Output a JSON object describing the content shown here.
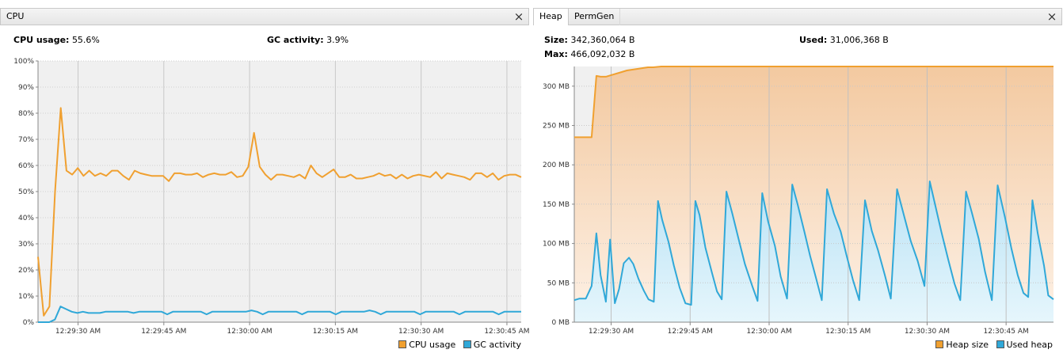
{
  "cpu": {
    "tab_label": "CPU",
    "usage_label": "CPU usage:",
    "usage_value": "55.6%",
    "gc_label": "GC activity:",
    "gc_value": "3.9%",
    "legend": [
      {
        "label": "CPU usage",
        "color": "#f0a030"
      },
      {
        "label": "GC activity",
        "color": "#30a8d8"
      }
    ]
  },
  "heap": {
    "tabs": [
      {
        "label": "Heap"
      },
      {
        "label": "PermGen"
      }
    ],
    "size_label": "Size:",
    "size_value": "342,360,064 B",
    "used_label": "Used:",
    "used_value": "31,006,368 B",
    "max_label": "Max:",
    "max_value": "466,092,032 B",
    "legend": [
      {
        "label": "Heap size",
        "color": "#f0a030"
      },
      {
        "label": "Used heap",
        "color": "#30a8d8"
      }
    ]
  },
  "chart_data": [
    {
      "type": "line",
      "title": "CPU",
      "ylim": [
        0,
        100
      ],
      "yticks": [
        "0%",
        "10%",
        "20%",
        "30%",
        "40%",
        "50%",
        "60%",
        "70%",
        "80%",
        "90%",
        "100%"
      ],
      "xticks": [
        "12:29:30 AM",
        "12:29:45 AM",
        "12:30:00 AM",
        "12:30:15 AM",
        "12:30:30 AM",
        "12:30:45 AM"
      ],
      "xtick_seconds": [
        7,
        22,
        37,
        52,
        67,
        82
      ],
      "x_range_seconds": [
        0,
        84.5
      ],
      "grid": true,
      "legend_position": "bottom-right",
      "series": [
        {
          "name": "CPU usage",
          "color": "#f0a030",
          "values": [
            25,
            2.5,
            6,
            50,
            82,
            58,
            56.5,
            59,
            56,
            58,
            56,
            57,
            56,
            58,
            58,
            56,
            54.5,
            58,
            57,
            56.5,
            56,
            56,
            56,
            54,
            57,
            57,
            56.5,
            56.5,
            57,
            55.5,
            56.5,
            57,
            56.5,
            56.5,
            57.5,
            55.5,
            56,
            59.5,
            72.5,
            59.5,
            56.5,
            54.5,
            56.5,
            56.5,
            56,
            55.5,
            56.5,
            55,
            60,
            57,
            55.5,
            57,
            58.5,
            55.5,
            55.5,
            56.5,
            55,
            55,
            55.5,
            56,
            57,
            56,
            56.5,
            55,
            56.5,
            55,
            56,
            56.5,
            56,
            55.5,
            57.5,
            55,
            57,
            56.5,
            56,
            55.5,
            54.5,
            57,
            57,
            55.5,
            57,
            54.5,
            56,
            56.5,
            56.5,
            55.5
          ]
        },
        {
          "name": "GC activity",
          "color": "#30a8d8",
          "values": [
            0,
            0,
            0,
            1,
            6,
            5,
            4,
            3.5,
            4,
            3.5,
            3.5,
            3.5,
            4,
            4,
            4,
            4,
            4,
            3.5,
            4,
            4,
            4,
            4,
            4,
            3,
            4,
            4,
            4,
            4,
            4,
            4,
            3,
            4,
            4,
            4,
            4,
            4,
            4,
            4,
            4.5,
            4,
            3,
            4,
            4,
            4,
            4,
            4,
            4,
            3,
            4,
            4,
            4,
            4,
            4,
            3,
            4,
            4,
            4,
            4,
            4,
            4.5,
            4,
            3,
            4,
            4,
            4,
            4,
            4,
            4,
            3,
            4,
            4,
            4,
            4,
            4,
            4,
            3,
            4,
            4,
            4,
            4,
            4,
            4,
            3,
            4,
            4,
            4,
            4
          ]
        }
      ]
    },
    {
      "type": "area",
      "title": "Heap",
      "ylim": [
        0,
        325
      ],
      "ylabel_unit": "MB",
      "yticks": [
        "0 MB",
        "50 MB",
        "100 MB",
        "150 MB",
        "200 MB",
        "250 MB",
        "300 MB"
      ],
      "xticks": [
        "12:29:30 AM",
        "12:29:45 AM",
        "12:30:00 AM",
        "12:30:15 AM",
        "12:30:30 AM",
        "12:30:45 AM"
      ],
      "xtick_seconds": [
        7,
        22,
        37,
        52,
        67,
        82
      ],
      "x_range_seconds": [
        0,
        84.5
      ],
      "grid": true,
      "legend_position": "bottom-right",
      "series": [
        {
          "name": "Heap size",
          "color": "#f0a030",
          "points": [
            [
              0,
              235
            ],
            [
              3.3,
              235
            ],
            [
              4.2,
              313
            ],
            [
              5,
              312
            ],
            [
              6,
              312
            ],
            [
              7,
              314
            ],
            [
              8.5,
              317
            ],
            [
              10,
              320
            ],
            [
              12,
              322
            ],
            [
              14,
              324
            ],
            [
              15,
              324
            ],
            [
              16.5,
              325
            ],
            [
              84.5,
              325
            ]
          ]
        },
        {
          "name": "Used heap",
          "color": "#30a8d8",
          "points": [
            [
              0,
              28
            ],
            [
              1,
              30
            ],
            [
              2.2,
              30
            ],
            [
              3.3,
              46
            ],
            [
              4.2,
              113
            ],
            [
              5,
              60
            ],
            [
              6,
              26
            ],
            [
              6.8,
              105
            ],
            [
              7.7,
              24
            ],
            [
              8.5,
              42
            ],
            [
              9.4,
              75
            ],
            [
              10.4,
              82
            ],
            [
              11.2,
              74
            ],
            [
              12.2,
              55
            ],
            [
              13.2,
              40
            ],
            [
              14.1,
              29
            ],
            [
              15.1,
              26
            ],
            [
              15.9,
              154
            ],
            [
              16.7,
              130
            ],
            [
              17.9,
              102
            ],
            [
              18.9,
              72
            ],
            [
              20.0,
              44
            ],
            [
              21.1,
              24
            ],
            [
              22.2,
              22
            ],
            [
              23.0,
              154
            ],
            [
              23.8,
              136
            ],
            [
              24.9,
              95
            ],
            [
              26.1,
              64
            ],
            [
              27.1,
              39
            ],
            [
              28.0,
              29
            ],
            [
              28.9,
              166
            ],
            [
              30.0,
              138
            ],
            [
              31.2,
              106
            ],
            [
              32.4,
              74
            ],
            [
              33.8,
              46
            ],
            [
              34.8,
              27
            ],
            [
              35.7,
              164
            ],
            [
              36.8,
              128
            ],
            [
              38.1,
              97
            ],
            [
              39.2,
              58
            ],
            [
              40.4,
              30
            ],
            [
              41.4,
              175
            ],
            [
              42.4,
              150
            ],
            [
              43.7,
              115
            ],
            [
              44.8,
              84
            ],
            [
              45.9,
              56
            ],
            [
              47.0,
              28
            ],
            [
              48.0,
              169
            ],
            [
              49.3,
              138
            ],
            [
              50.6,
              115
            ],
            [
              51.7,
              85
            ],
            [
              52.9,
              54
            ],
            [
              54.1,
              28
            ],
            [
              55.2,
              155
            ],
            [
              56.5,
              116
            ],
            [
              57.7,
              91
            ],
            [
              59.0,
              59
            ],
            [
              60.1,
              30
            ],
            [
              61.3,
              169
            ],
            [
              62.7,
              133
            ],
            [
              63.9,
              103
            ],
            [
              65.2,
              78
            ],
            [
              66.5,
              46
            ],
            [
              67.5,
              179
            ],
            [
              68.5,
              150
            ],
            [
              69.7,
              115
            ],
            [
              71.0,
              80
            ],
            [
              72.2,
              49
            ],
            [
              73.3,
              28
            ],
            [
              74.4,
              166
            ],
            [
              75.5,
              139
            ],
            [
              76.8,
              106
            ],
            [
              78.0,
              64
            ],
            [
              79.3,
              28
            ],
            [
              80.4,
              174
            ],
            [
              81.8,
              133
            ],
            [
              83.0,
              94
            ],
            [
              84.2,
              60
            ],
            [
              85.3,
              37
            ],
            [
              86.2,
              32
            ],
            [
              87.0,
              155
            ],
            [
              88.0,
              113
            ],
            [
              89.2,
              72
            ],
            [
              90.0,
              34
            ],
            [
              91.0,
              29
            ]
          ]
        }
      ]
    }
  ]
}
